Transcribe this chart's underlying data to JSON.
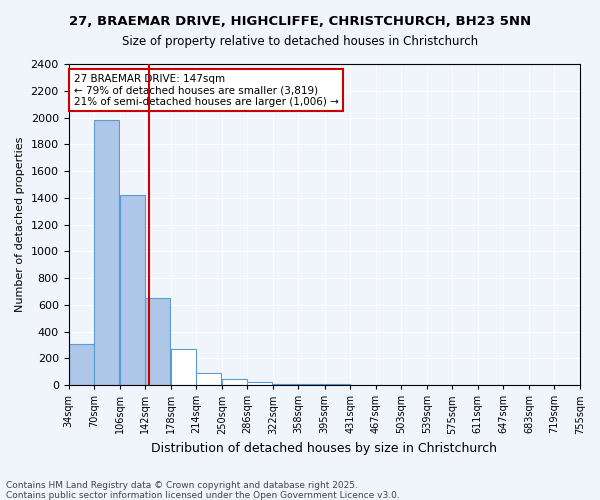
{
  "title1": "27, BRAEMAR DRIVE, HIGHCLIFFE, CHRISTCHURCH, BH23 5NN",
  "title2": "Size of property relative to detached houses in Christchurch",
  "xlabel": "Distribution of detached houses by size in Christchurch",
  "ylabel": "Number of detached properties",
  "footnote1": "Contains HM Land Registry data © Crown copyright and database right 2025.",
  "footnote2": "Contains public sector information licensed under the Open Government Licence v3.0.",
  "annotation_title": "27 BRAEMAR DRIVE: 147sqm",
  "annotation_line1": "← 79% of detached houses are smaller (3,819)",
  "annotation_line2": "21% of semi-detached houses are larger (1,006) →",
  "property_size_sqm": 147,
  "bin_edges": [
    34,
    70,
    106,
    142,
    178,
    214,
    250,
    286,
    322,
    358,
    395,
    431,
    467,
    503,
    539,
    575,
    611,
    647,
    683,
    719,
    755
  ],
  "bin_labels": [
    "34sqm",
    "70sqm",
    "106sqm",
    "142sqm",
    "178sqm",
    "214sqm",
    "250sqm",
    "286sqm",
    "322sqm",
    "358sqm",
    "395sqm",
    "431sqm",
    "467sqm",
    "503sqm",
    "539sqm",
    "575sqm",
    "611sqm",
    "647sqm",
    "683sqm",
    "719sqm",
    "755sqm"
  ],
  "counts": [
    310,
    1980,
    1420,
    650,
    270,
    90,
    45,
    20,
    10,
    8,
    5,
    4,
    3,
    2,
    2,
    1,
    1,
    1,
    0,
    0
  ],
  "bar_color_left": "#aec6e8",
  "bar_color_right": "#ffffff",
  "bar_edge_color": "#5b9bd5",
  "vline_color": "#cc0000",
  "annotation_box_color": "#cc0000",
  "background_color": "#f0f4fb",
  "grid_color": "#ffffff",
  "ylim": [
    0,
    2400
  ],
  "yticks": [
    0,
    200,
    400,
    600,
    800,
    1000,
    1200,
    1400,
    1600,
    1800,
    2000,
    2200,
    2400
  ]
}
